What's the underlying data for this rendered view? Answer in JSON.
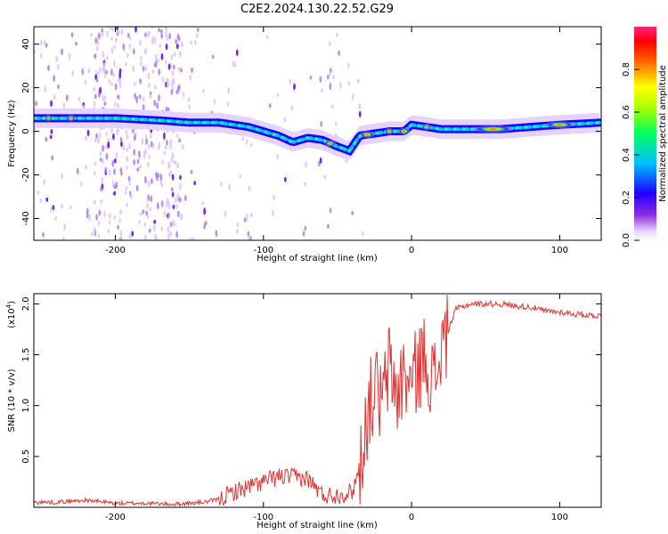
{
  "title": "C2E2.2024.130.22.52.G29",
  "chart_data": [
    {
      "type": "heatmap",
      "title": "C2E2.2024.130.22.52.G29",
      "xlabel": "Height of straight line (km)",
      "ylabel": "Frequency (Hz)",
      "xlim": [
        -255,
        128
      ],
      "ylim": [
        -50,
        48
      ],
      "xticks": [
        -200,
        -100,
        0,
        100
      ],
      "yticks": [
        40,
        20,
        0,
        -20,
        -40
      ],
      "xtick_labels": [
        "-200",
        "-100",
        "0",
        "100"
      ],
      "ytick_labels": [
        "40",
        "20",
        "0",
        "-20",
        "-40"
      ],
      "ridge": {
        "x": [
          -255,
          -230,
          -200,
          -170,
          -150,
          -130,
          -110,
          -100,
          -90,
          -80,
          -70,
          -60,
          -50,
          -42,
          -35,
          -25,
          -15,
          -5,
          0,
          10,
          20,
          40,
          60,
          80,
          100,
          128
        ],
        "y": [
          6,
          6,
          6,
          5,
          4,
          4,
          2,
          0,
          -2,
          -5,
          -3,
          -4,
          -7,
          -9,
          -2,
          -1,
          0,
          0,
          3,
          2,
          1,
          1,
          1,
          2,
          3,
          4
        ]
      },
      "colorbar": {
        "label": "Normalized spectral amplitude",
        "range": [
          0,
          1
        ],
        "ticks": [
          0.0,
          0.2,
          0.4,
          0.6,
          0.8
        ],
        "tick_labels": [
          "0.0",
          "0.2",
          "0.4",
          "0.6",
          "0.8"
        ]
      }
    },
    {
      "type": "line",
      "xlabel": "Height of straight line (km)",
      "ylabel": "SNR (10 * v/v)",
      "ylabel_multiplier": "(x10",
      "ylabel_exponent": "4",
      "ylabel_close": ")",
      "xlim": [
        -255,
        128
      ],
      "ylim": [
        0,
        2.1
      ],
      "xticks": [
        -200,
        -100,
        0,
        100
      ],
      "xtick_labels": [
        "-200",
        "-100",
        "0",
        "100"
      ],
      "yticks": [
        0.5,
        1.0,
        1.5,
        2.0
      ],
      "ytick_labels": [
        "0.5",
        "1.0",
        "1.5",
        "2.0"
      ],
      "series": [
        {
          "name": "SNR",
          "color": "#e53030",
          "x": [
            -255,
            -240,
            -220,
            -200,
            -180,
            -160,
            -140,
            -130,
            -120,
            -110,
            -100,
            -90,
            -80,
            -70,
            -60,
            -50,
            -40,
            -35,
            -30,
            -25,
            -20,
            -15,
            -10,
            -5,
            0,
            5,
            10,
            15,
            20,
            25,
            30,
            40,
            50,
            60,
            70,
            80,
            85,
            90,
            100,
            110,
            128
          ],
          "y": [
            0.05,
            0.05,
            0.07,
            0.04,
            0.04,
            0.03,
            0.05,
            0.08,
            0.15,
            0.2,
            0.25,
            0.3,
            0.3,
            0.28,
            0.12,
            0.12,
            0.15,
            0.4,
            0.9,
            1.2,
            1.0,
            1.4,
            1.1,
            1.3,
            1.2,
            1.4,
            1.5,
            1.2,
            1.55,
            1.75,
            1.95,
            2.0,
            2.0,
            2.0,
            1.98,
            1.97,
            1.95,
            1.93,
            1.92,
            1.9,
            1.88
          ]
        }
      ]
    }
  ]
}
